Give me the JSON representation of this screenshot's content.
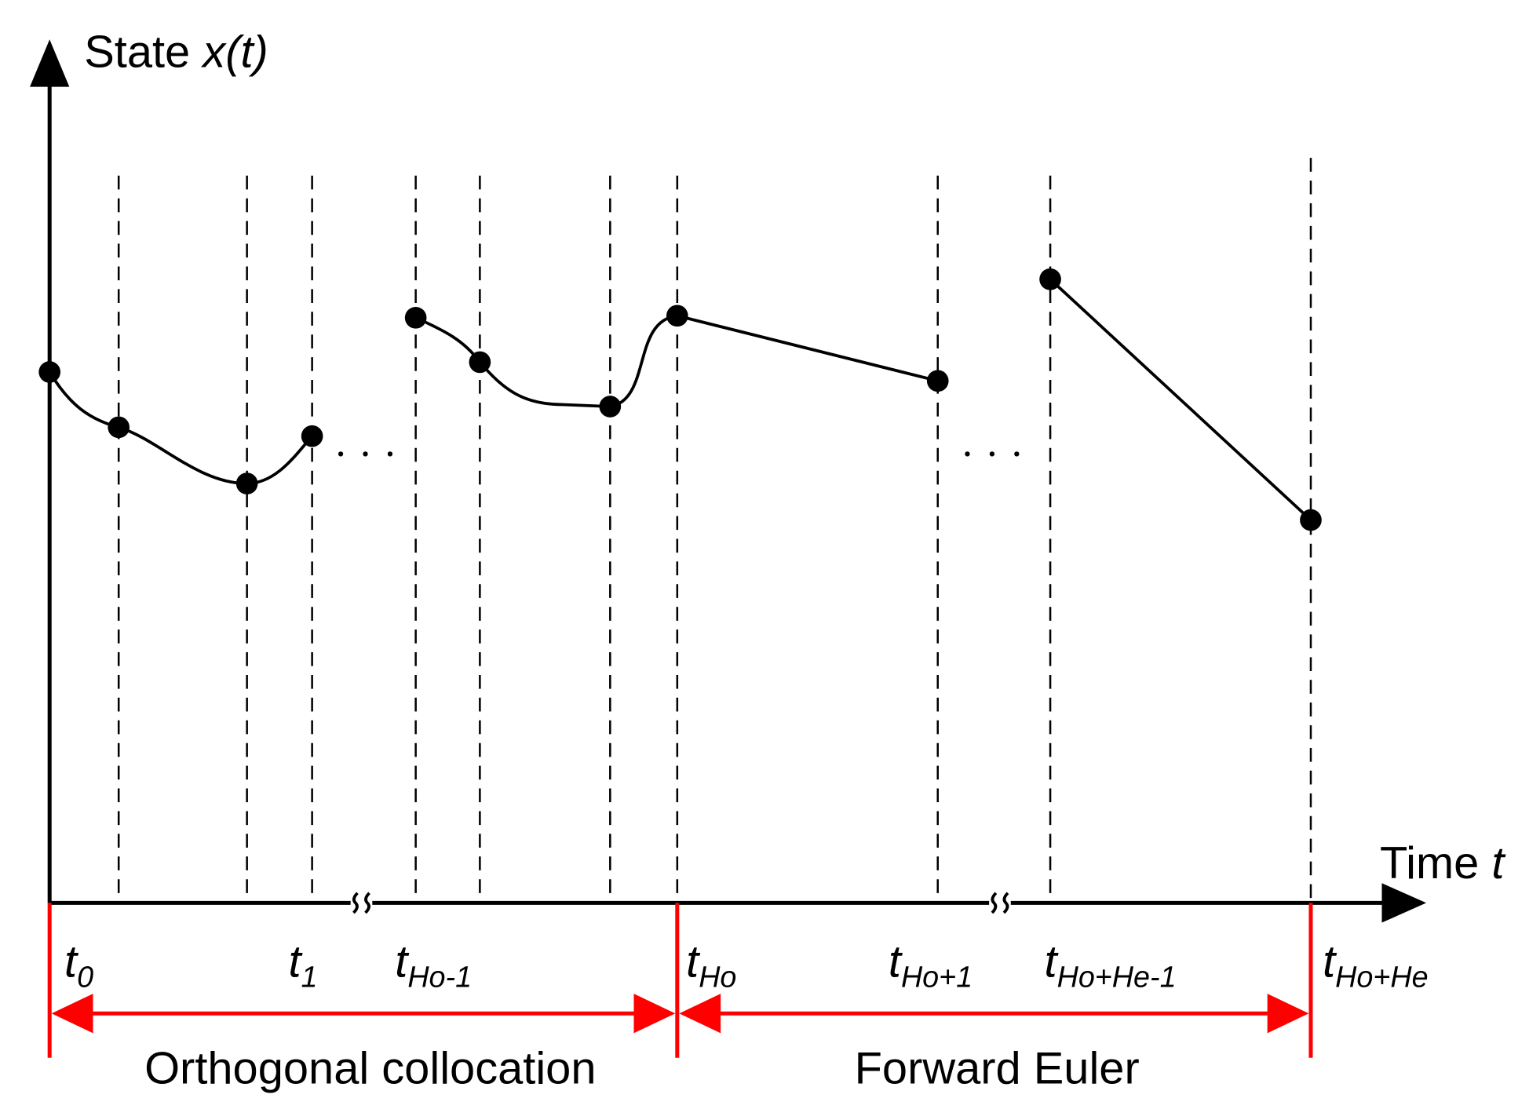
{
  "y_axis": {
    "label": "State",
    "variable": "x(t)"
  },
  "x_axis": {
    "label": "Time",
    "variable": "t"
  },
  "ticks": [
    {
      "base": "t",
      "sub": "0"
    },
    {
      "base": "t",
      "sub": "1"
    },
    {
      "base": "t",
      "sub": "Ho-1"
    },
    {
      "base": "t",
      "sub": "Ho"
    },
    {
      "base": "t",
      "sub": "Ho+1"
    },
    {
      "base": "t",
      "sub": "Ho+He-1"
    },
    {
      "base": "t",
      "sub": "Ho+He"
    }
  ],
  "regions": [
    "Orthogonal collocation",
    "Forward Euler"
  ]
}
